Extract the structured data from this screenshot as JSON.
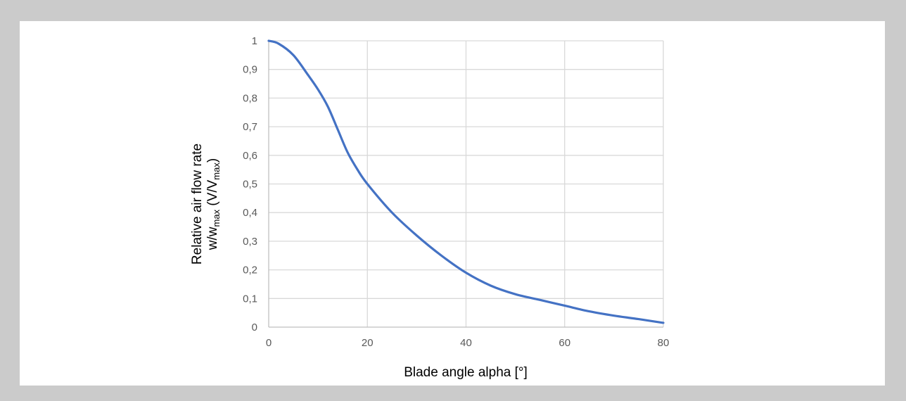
{
  "chart_data": {
    "type": "line",
    "xlabel": "Blade angle alpha [°]",
    "ylabel_line1": "Relative air flow rate",
    "ylabel_line2": {
      "w": "w/w",
      "w_sub": "max",
      "v": " (V/V",
      "v_sub": "max",
      "close": ")"
    },
    "xlim": [
      0,
      80
    ],
    "ylim": [
      0,
      1
    ],
    "x_ticks": [
      0,
      20,
      40,
      60,
      80
    ],
    "x_tick_labels": [
      "0",
      "20",
      "40",
      "60",
      "80"
    ],
    "y_ticks": [
      0,
      0.1,
      0.2,
      0.3,
      0.4,
      0.5,
      0.6,
      0.7,
      0.8,
      0.9,
      1
    ],
    "y_tick_labels": [
      "0",
      "0,1",
      "0,2",
      "0,3",
      "0,4",
      "0,5",
      "0,6",
      "0,7",
      "0,8",
      "0,9",
      "1"
    ],
    "grid": "vertical",
    "series": [
      {
        "color": "#4472c4",
        "x": [
          0,
          2,
          5,
          8,
          10,
          12,
          14,
          16,
          18,
          20,
          25,
          30,
          35,
          40,
          45,
          50,
          55,
          60,
          65,
          70,
          75,
          80
        ],
        "y": [
          1.0,
          0.99,
          0.95,
          0.88,
          0.83,
          0.77,
          0.69,
          0.61,
          0.55,
          0.5,
          0.4,
          0.32,
          0.25,
          0.19,
          0.145,
          0.115,
          0.095,
          0.075,
          0.055,
          0.04,
          0.028,
          0.015
        ]
      }
    ]
  }
}
